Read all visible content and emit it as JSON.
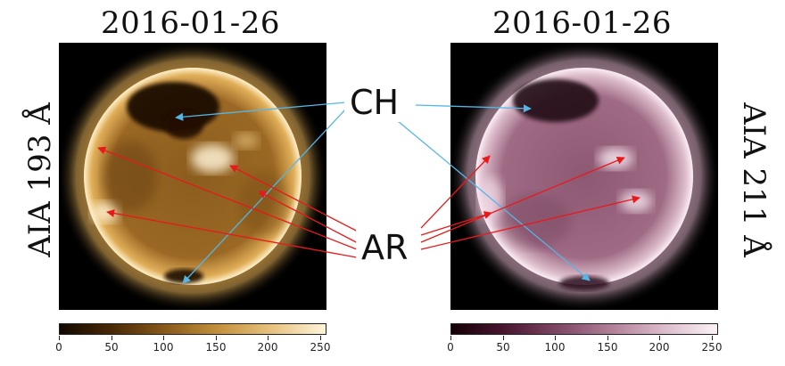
{
  "panels": [
    {
      "title": "2016-01-26",
      "side_label": "AIA 193 Å",
      "colormap": [
        "#120800",
        "#4a2a06",
        "#8a5a1a",
        "#c4923e",
        "#e8c380",
        "#fff4da"
      ],
      "colorbar_ticks": [
        "0",
        "50",
        "100",
        "150",
        "200",
        "250"
      ]
    },
    {
      "title": "2016-01-26",
      "side_label": "AIA 211 Å",
      "colormap": [
        "#140006",
        "#4a1630",
        "#7f4764",
        "#b17f98",
        "#dcbccc",
        "#fbf2f6"
      ],
      "colorbar_ticks": [
        "0",
        "50",
        "100",
        "150",
        "200",
        "250"
      ]
    }
  ],
  "annotations": {
    "ch_label": "CH",
    "ar_label": "AR",
    "ch_color": "#55b6e6",
    "ar_color": "#e8191b"
  }
}
